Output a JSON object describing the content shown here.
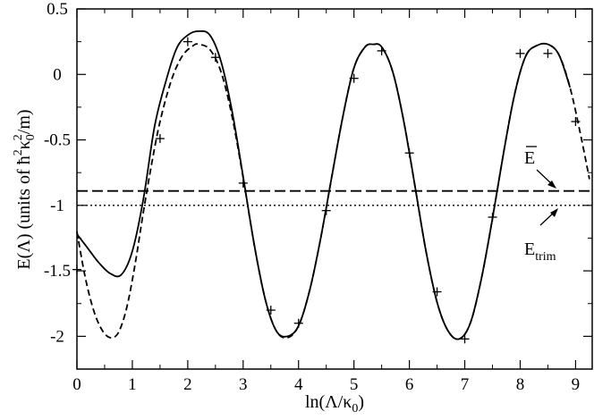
{
  "chart_data": {
    "type": "line",
    "xlabel_main": "ln(Λ/κ",
    "xlabel_sub": "0",
    "xlabel_tail": ")",
    "ylabel_main": "E(Λ) (units of ħ",
    "ylabel_sup1": "2",
    "ylabel_mid": "κ",
    "ylabel_sub": "0",
    "ylabel_sup2": "2",
    "ylabel_tail": "/m)",
    "xlim": [
      0,
      9.3
    ],
    "ylim": [
      -2.25,
      0.5
    ],
    "xticks": [
      0,
      1,
      2,
      3,
      4,
      5,
      6,
      7,
      8,
      9
    ],
    "xtick_labels": [
      "0",
      "1",
      "2",
      "3",
      "4",
      "5",
      "6",
      "7",
      "8",
      "9"
    ],
    "yticks": [
      0.5,
      0,
      -0.5,
      -1,
      -1.5,
      -2
    ],
    "ytick_labels": [
      "0.5",
      "0",
      "-0.5",
      "-1",
      "-1.5",
      "-2"
    ],
    "series": [
      {
        "style": "solid",
        "x": [
          0,
          0.2,
          0.4,
          0.6,
          0.8,
          1.0,
          1.2,
          1.4,
          1.6,
          1.8,
          2.0,
          2.2,
          2.4,
          2.6,
          2.8,
          3.0,
          3.2,
          3.4,
          3.6,
          3.8,
          4.0,
          4.2,
          4.4,
          4.6,
          4.8,
          5.0,
          5.2,
          5.35,
          5.5,
          5.7,
          5.9,
          6.1,
          6.3,
          6.5,
          6.7,
          6.9,
          7.1,
          7.3,
          7.5,
          7.7,
          7.9,
          8.1,
          8.3,
          8.5,
          8.7,
          8.9
        ],
        "y": [
          -1.22,
          -1.33,
          -1.44,
          -1.52,
          -1.53,
          -1.35,
          -0.95,
          -0.4,
          -0.06,
          0.2,
          0.3,
          0.33,
          0.3,
          0.1,
          -0.28,
          -0.78,
          -1.3,
          -1.72,
          -1.96,
          -2.0,
          -1.92,
          -1.65,
          -1.25,
          -0.78,
          -0.32,
          0.05,
          0.21,
          0.23,
          0.21,
          0.02,
          -0.36,
          -0.85,
          -1.35,
          -1.74,
          -1.96,
          -2.02,
          -1.9,
          -1.56,
          -1.1,
          -0.6,
          -0.15,
          0.14,
          0.22,
          0.23,
          0.15,
          -0.1
        ]
      },
      {
        "style": "dashed",
        "x": [
          0,
          0.15,
          0.3,
          0.45,
          0.6,
          0.75,
          0.9,
          1.05,
          1.2,
          1.35,
          1.5,
          1.7,
          1.9,
          2.1,
          2.2,
          2.4,
          2.6,
          2.8,
          3.0,
          3.2,
          3.4,
          3.6,
          3.8,
          4.0,
          4.2,
          4.4,
          4.6,
          4.8,
          5.0,
          5.2,
          5.35,
          5.5,
          5.7,
          5.9,
          6.1,
          6.3,
          6.5,
          6.7,
          6.9,
          7.1,
          7.3,
          7.5,
          7.7,
          7.9,
          8.1,
          8.3,
          8.5,
          8.7,
          8.9,
          9.1,
          9.25
        ],
        "y": [
          -1.2,
          -1.55,
          -1.8,
          -1.95,
          -2.01,
          -1.97,
          -1.78,
          -1.45,
          -1.05,
          -0.68,
          -0.36,
          -0.05,
          0.14,
          0.22,
          0.23,
          0.19,
          0.02,
          -0.32,
          -0.79,
          -1.3,
          -1.72,
          -1.96,
          -2.01,
          -1.92,
          -1.65,
          -1.25,
          -0.78,
          -0.32,
          0.05,
          0.21,
          0.23,
          0.21,
          0.02,
          -0.36,
          -0.85,
          -1.35,
          -1.74,
          -1.96,
          -2.02,
          -1.9,
          -1.56,
          -1.1,
          -0.6,
          -0.15,
          0.14,
          0.22,
          0.23,
          0.15,
          -0.1,
          -0.48,
          -0.8
        ]
      },
      {
        "style": "crosses",
        "x": [
          0,
          1.5,
          2.0,
          2.5,
          3.0,
          3.5,
          4.0,
          4.5,
          5.0,
          5.5,
          6.0,
          6.5,
          7.0,
          7.5,
          8.0,
          8.5,
          9.0
        ],
        "y": [
          -1.49,
          -0.49,
          0.25,
          0.13,
          -0.83,
          -1.8,
          -1.9,
          -1.04,
          -0.03,
          0.18,
          -0.6,
          -1.66,
          -2.02,
          -1.09,
          0.16,
          0.16,
          -0.36
        ]
      }
    ],
    "hlines": [
      {
        "style": "long-dashed",
        "y": -0.89
      },
      {
        "style": "dotted",
        "y": -1.0
      }
    ],
    "annotations": {
      "ebar_label": "E",
      "etrim_main": "E",
      "etrim_sub": "trim"
    }
  }
}
